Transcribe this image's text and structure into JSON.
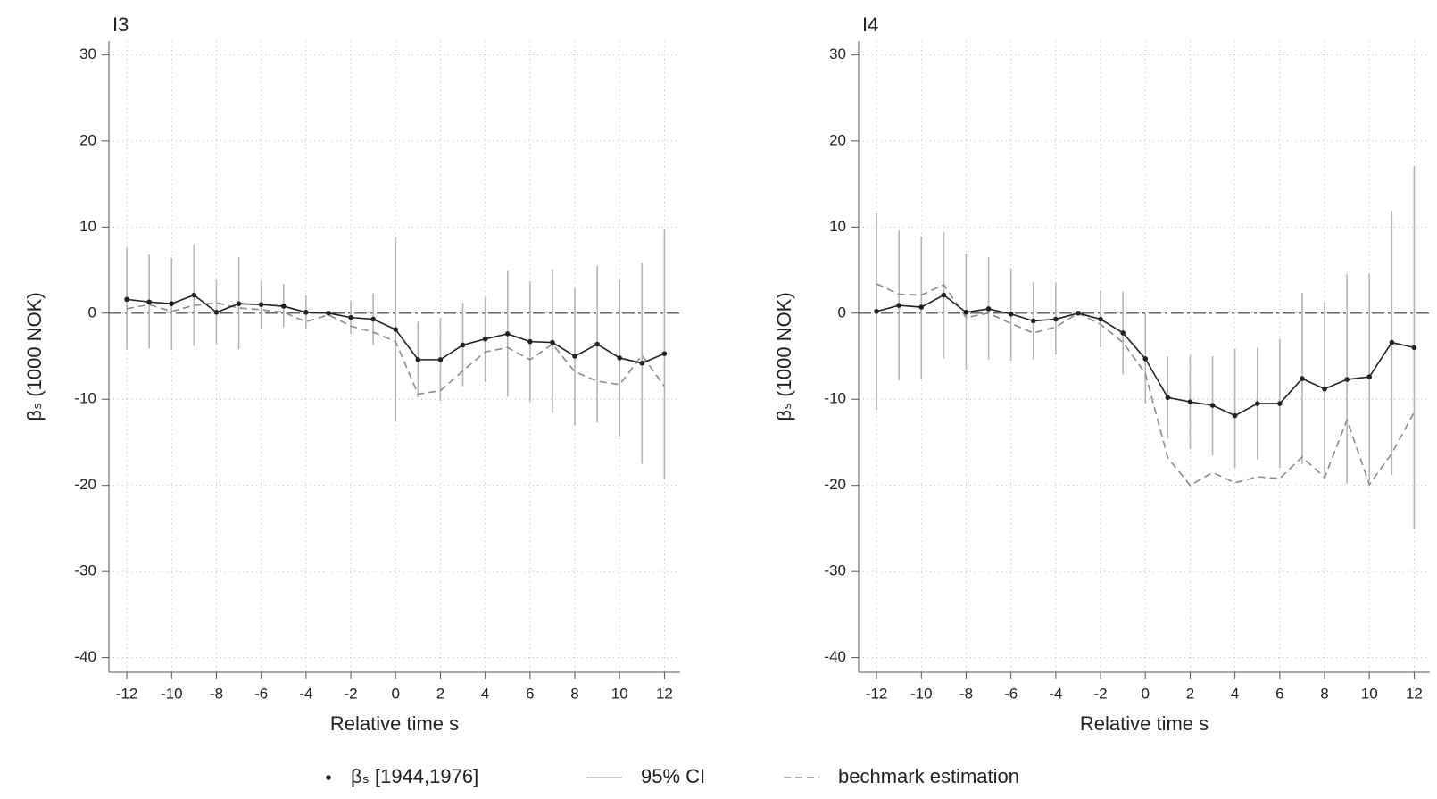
{
  "chart_data": [
    {
      "type": "line",
      "title": "I3",
      "xlabel": "Relative time s",
      "ylabel": "βₛ (1000 NOK)",
      "x": [
        -12,
        -11,
        -10,
        -9,
        -8,
        -7,
        -6,
        -5,
        -4,
        -3,
        -2,
        -1,
        0,
        1,
        2,
        3,
        4,
        5,
        6,
        7,
        8,
        9,
        10,
        11,
        12
      ],
      "xlim": [
        -12.8,
        12.7
      ],
      "ylim": [
        -41.7,
        31.6
      ],
      "xticks": [
        -12,
        -10,
        -8,
        -6,
        -4,
        -2,
        0,
        2,
        4,
        6,
        8,
        10,
        12
      ],
      "yticks": [
        -40,
        -30,
        -20,
        -10,
        0,
        10,
        20,
        30
      ],
      "grid": true,
      "hline": 0,
      "legend": "bottom",
      "series": [
        {
          "name": "βₛ [1944,1976]",
          "color": "#222222",
          "style": "markers",
          "values": [
            1.6,
            1.3,
            1.1,
            2.1,
            0.1,
            1.1,
            1.0,
            0.8,
            0.1,
            0.0,
            -0.5,
            -0.7,
            -1.9,
            -5.4,
            -5.4,
            -3.7,
            -3.0,
            -2.4,
            -3.3,
            -3.4,
            -5.0,
            -3.6,
            -5.2,
            -5.8,
            -4.7
          ]
        },
        {
          "name": "95% CI",
          "color": "#b5b5b5",
          "style": "errorbar",
          "upper": [
            7.6,
            6.8,
            6.4,
            8.0,
            3.9,
            6.5,
            3.8,
            3.4,
            2.0,
            null,
            1.4,
            2.3,
            8.8,
            -1.0,
            -0.6,
            1.2,
            1.9,
            4.9,
            3.7,
            5.1,
            2.9,
            5.5,
            3.9,
            5.8,
            9.8
          ],
          "lower": [
            -4.2,
            -4.1,
            -4.2,
            -3.8,
            -3.6,
            -4.2,
            -1.8,
            -1.6,
            -1.8,
            null,
            -2.4,
            -3.7,
            -12.6,
            -9.8,
            -10.2,
            -8.5,
            -8.0,
            -9.7,
            -10.3,
            -11.6,
            -13.0,
            -12.7,
            -14.3,
            -17.5,
            -19.2
          ]
        },
        {
          "name": "bechmark estimation",
          "color": "#8a8a8a",
          "style": "dashed",
          "values": [
            0.5,
            1.0,
            0.2,
            0.9,
            1.2,
            0.6,
            0.4,
            0.1,
            -1.0,
            -0.2,
            -1.5,
            -2.2,
            -3.3,
            -9.4,
            -9.0,
            -6.7,
            -4.5,
            -4.0,
            -5.4,
            -3.6,
            -6.8,
            -7.9,
            -8.3,
            -4.9,
            -8.5
          ]
        }
      ]
    },
    {
      "type": "line",
      "title": "I4",
      "xlabel": "Relative time s",
      "ylabel": "βₛ (1000 NOK)",
      "x": [
        -12,
        -11,
        -10,
        -9,
        -8,
        -7,
        -6,
        -5,
        -4,
        -3,
        -2,
        -1,
        0,
        1,
        2,
        3,
        4,
        5,
        6,
        7,
        8,
        9,
        10,
        11,
        12
      ],
      "xlim": [
        -12.8,
        12.7
      ],
      "ylim": [
        -41.7,
        31.6
      ],
      "xticks": [
        -12,
        -10,
        -8,
        -6,
        -4,
        -2,
        0,
        2,
        4,
        6,
        8,
        10,
        12
      ],
      "yticks": [
        -40,
        -30,
        -20,
        -10,
        0,
        10,
        20,
        30
      ],
      "grid": true,
      "hline": 0,
      "series": [
        {
          "color": "#222222",
          "style": "markers",
          "values": [
            0.2,
            0.9,
            0.7,
            2.1,
            0.1,
            0.5,
            -0.1,
            -0.9,
            -0.7,
            0.0,
            -0.7,
            -2.3,
            -5.3,
            -9.8,
            -10.3,
            -10.7,
            -11.9,
            -10.5,
            -10.5,
            -7.6,
            -8.8,
            -7.7,
            -7.4,
            -3.4,
            -4.0
          ]
        },
        {
          "color": "#b5b5b5",
          "style": "errorbar",
          "upper": [
            11.6,
            9.6,
            8.9,
            9.4,
            6.9,
            6.5,
            5.2,
            3.6,
            3.5,
            null,
            2.6,
            2.5,
            -0.1,
            -5.0,
            -4.9,
            -5.0,
            -4.1,
            -4.0,
            -3.0,
            2.4,
            1.3,
            4.5,
            4.6,
            11.9,
            17.1
          ],
          "lower": [
            -11.2,
            -7.8,
            -7.6,
            -5.3,
            -6.6,
            -5.4,
            -5.5,
            -5.4,
            -4.8,
            null,
            -4.0,
            -7.1,
            -10.5,
            -14.6,
            -15.8,
            -16.5,
            -18.0,
            -17.0,
            -18.0,
            -17.5,
            -19.0,
            -19.8,
            -19.5,
            -18.8,
            -25.1
          ]
        },
        {
          "color": "#8a8a8a",
          "style": "dashed",
          "values": [
            3.4,
            2.2,
            2.1,
            3.3,
            -0.5,
            0.0,
            -1.2,
            -2.3,
            -1.6,
            0.0,
            -1.3,
            -3.4,
            -7.0,
            -16.8,
            -20.0,
            -18.5,
            -19.7,
            -19.0,
            -19.2,
            -16.7,
            -19.1,
            -12.4,
            -19.9,
            -16.3,
            -11.5
          ]
        }
      ]
    }
  ]
}
